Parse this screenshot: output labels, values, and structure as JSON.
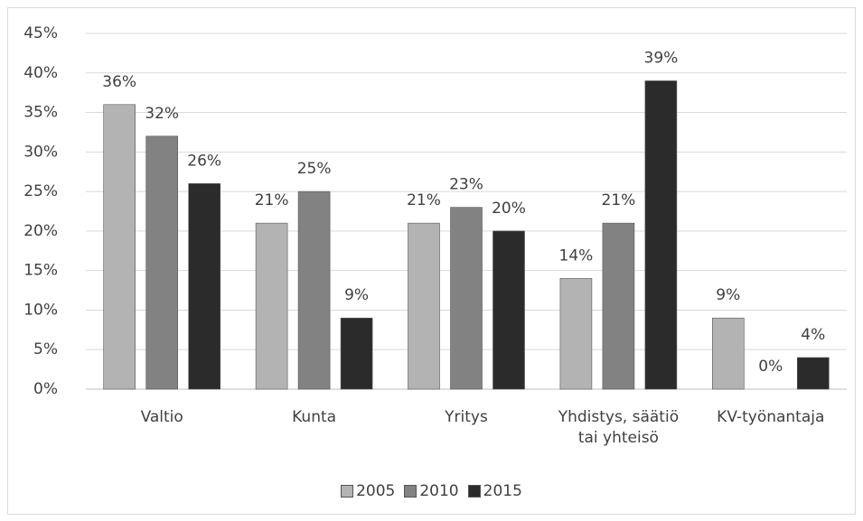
{
  "chart_data": {
    "type": "bar",
    "categories": [
      "Valtio",
      "Kunta",
      "Yritys",
      "Yhdistys, säätiö tai yhteisö",
      "KV-työnantaja"
    ],
    "series": [
      {
        "name": "2005",
        "color": "#b3b3b3",
        "values": [
          36,
          21,
          21,
          14,
          9
        ],
        "value_labels": [
          "36%",
          "21%",
          "21%",
          "14%",
          "9%"
        ]
      },
      {
        "name": "2010",
        "color": "#828282",
        "values": [
          32,
          25,
          23,
          21,
          0
        ],
        "value_labels": [
          "32%",
          "25%",
          "23%",
          "21%",
          "0%"
        ]
      },
      {
        "name": "2015",
        "color": "#2b2b2b",
        "values": [
          26,
          9,
          20,
          39,
          4
        ],
        "value_labels": [
          "26%",
          "9%",
          "20%",
          "39%",
          "4%"
        ]
      }
    ],
    "ylim": [
      0,
      45
    ],
    "yticks": [
      {
        "value": 0,
        "label": "0%"
      },
      {
        "value": 5,
        "label": "5%"
      },
      {
        "value": 10,
        "label": "10%"
      },
      {
        "value": 15,
        "label": "15%"
      },
      {
        "value": 20,
        "label": "20%"
      },
      {
        "value": 25,
        "label": "25%"
      },
      {
        "value": 30,
        "label": "30%"
      },
      {
        "value": 35,
        "label": "35%"
      },
      {
        "value": 40,
        "label": "40%"
      },
      {
        "value": 45,
        "label": "45%"
      }
    ],
    "grid": true,
    "legend": "bottom"
  }
}
